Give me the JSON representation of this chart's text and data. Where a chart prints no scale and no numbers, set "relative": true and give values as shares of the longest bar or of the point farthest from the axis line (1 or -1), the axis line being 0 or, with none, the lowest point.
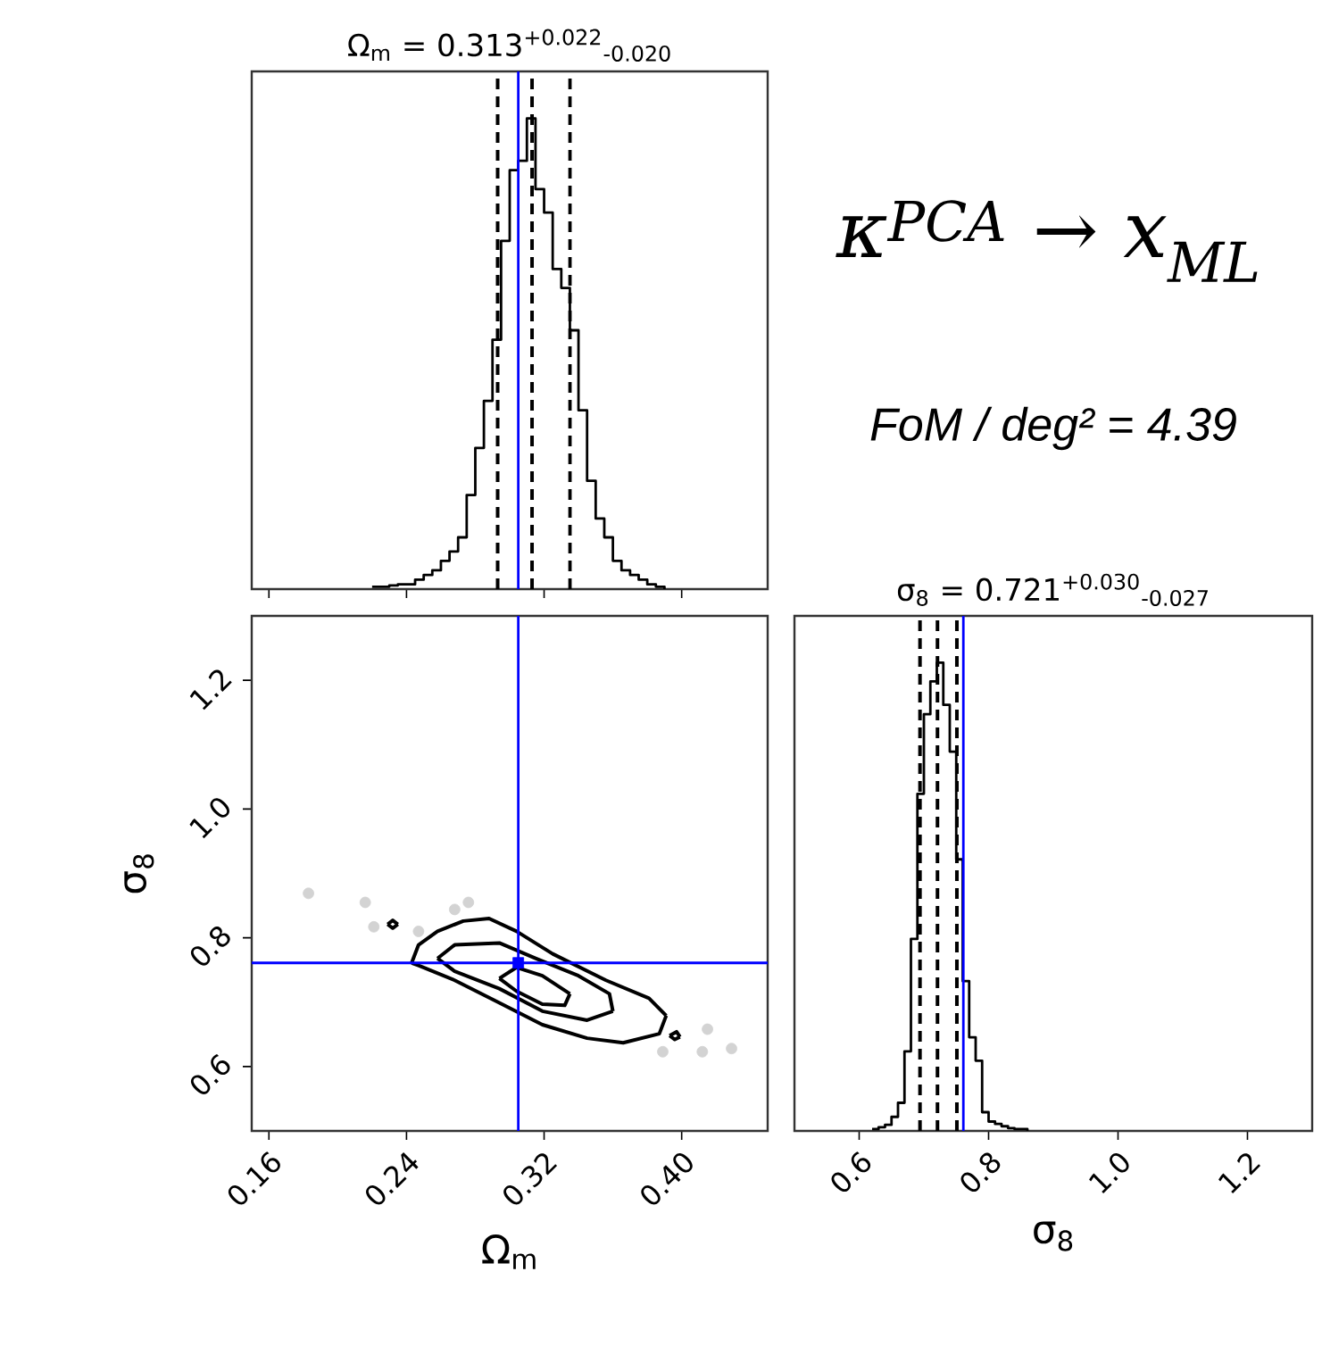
{
  "chart_data": [
    {
      "type": "step",
      "title": "Ω$_{m}$ = 0.313$^{+0.022}$$_{-0.020}$",
      "relative": true,
      "color": "#000000",
      "x": [
        0.22,
        0.225,
        0.23,
        0.235,
        0.24,
        0.245,
        0.25,
        0.255,
        0.26,
        0.265,
        0.27,
        0.275,
        0.28,
        0.285,
        0.29,
        0.295,
        0.3,
        0.305,
        0.31,
        0.315,
        0.32,
        0.325,
        0.33,
        0.335,
        0.34,
        0.345,
        0.35,
        0.355,
        0.36,
        0.365,
        0.37,
        0.375,
        0.38,
        0.385,
        0.39
      ],
      "values": [
        0.005,
        0.005,
        0.008,
        0.01,
        0.01,
        0.02,
        0.03,
        0.04,
        0.06,
        0.08,
        0.11,
        0.2,
        0.3,
        0.4,
        0.53,
        0.74,
        0.89,
        0.91,
        1.0,
        0.85,
        0.8,
        0.68,
        0.64,
        0.55,
        0.38,
        0.23,
        0.15,
        0.11,
        0.06,
        0.04,
        0.03,
        0.02,
        0.01,
        0.005,
        0
      ],
      "xlim": [
        0.15,
        0.45
      ],
      "xticks": [
        0.16,
        0.24,
        0.32,
        0.4
      ],
      "tick_labels": false,
      "ref_lines": [
        {
          "axis": "x",
          "value": 0.293,
          "color": "#000000",
          "line_style": "dashed"
        },
        {
          "axis": "x",
          "value": 0.313,
          "color": "#000000",
          "line_style": "dashed"
        },
        {
          "axis": "x",
          "value": 0.335,
          "color": "#000000",
          "line_style": "dashed"
        },
        {
          "axis": "x",
          "value": 0.305,
          "color": "#0000ff",
          "line_style": "solid"
        }
      ]
    },
    {
      "type": "line",
      "xlabel": "Ω$_{m}$",
      "ylabel": "σ$_{8}$",
      "xlim": [
        0.15,
        0.45
      ],
      "ylim": [
        0.5,
        1.3
      ],
      "xticks": [
        {
          "value": 0.16,
          "label": "0.16"
        },
        {
          "value": 0.24,
          "label": "0.24"
        },
        {
          "value": 0.32,
          "label": "0.32"
        },
        {
          "value": 0.4,
          "label": "0.40"
        }
      ],
      "yticks": [
        {
          "value": 0.6,
          "label": "0.6"
        },
        {
          "value": 0.8,
          "label": "0.8"
        },
        {
          "value": 1.0,
          "label": "1.0"
        },
        {
          "value": 1.2,
          "label": "1.2"
        }
      ],
      "series": [
        {
          "type": "line",
          "color": "#000000",
          "x": [
            0.243,
            0.247,
            0.258,
            0.273,
            0.288,
            0.304,
            0.325,
            0.356,
            0.381,
            0.391
          ],
          "values": [
            0.761,
            0.789,
            0.81,
            0.826,
            0.83,
            0.81,
            0.775,
            0.734,
            0.706,
            0.679
          ]
        },
        {
          "type": "line",
          "color": "#000000",
          "x": [
            0.243,
            0.247,
            0.268,
            0.294,
            0.319,
            0.345,
            0.366,
            0.387,
            0.391
          ],
          "values": [
            0.761,
            0.757,
            0.734,
            0.699,
            0.665,
            0.644,
            0.637,
            0.651,
            0.679
          ]
        },
        {
          "type": "line",
          "color": "#000000",
          "x": [
            0.258,
            0.268,
            0.294,
            0.315,
            0.34,
            0.358,
            0.36
          ],
          "values": [
            0.768,
            0.789,
            0.792,
            0.768,
            0.741,
            0.713,
            0.686
          ]
        },
        {
          "type": "line",
          "color": "#000000",
          "x": [
            0.258,
            0.268,
            0.294,
            0.319,
            0.345,
            0.36
          ],
          "values": [
            0.768,
            0.748,
            0.721,
            0.686,
            0.672,
            0.686
          ]
        },
        {
          "type": "line",
          "color": "#000000",
          "x": [
            0.294,
            0.304,
            0.319,
            0.335
          ],
          "values": [
            0.737,
            0.754,
            0.741,
            0.713
          ]
        },
        {
          "type": "line",
          "color": "#000000",
          "x": [
            0.294,
            0.304,
            0.319,
            0.332,
            0.335
          ],
          "values": [
            0.737,
            0.717,
            0.697,
            0.695,
            0.713
          ]
        },
        {
          "type": "line",
          "color": "#000000",
          "x": [
            0.229,
            0.232,
            0.235
          ],
          "values": [
            0.821,
            0.827,
            0.821
          ]
        },
        {
          "type": "line",
          "color": "#000000",
          "x": [
            0.229,
            0.232,
            0.235
          ],
          "values": [
            0.821,
            0.815,
            0.821
          ]
        },
        {
          "type": "line",
          "color": "#000000",
          "x": [
            0.393,
            0.397,
            0.399
          ],
          "values": [
            0.648,
            0.654,
            0.646
          ]
        },
        {
          "type": "line",
          "color": "#000000",
          "x": [
            0.393,
            0.396,
            0.399
          ],
          "values": [
            0.648,
            0.642,
            0.646
          ]
        },
        {
          "type": "scatter",
          "color": "#d3d3d3",
          "marker": "circle",
          "x": [
            0.183,
            0.216,
            0.221,
            0.276,
            0.268,
            0.247,
            0.415,
            0.429,
            0.389,
            0.412
          ],
          "values": [
            0.869,
            0.855,
            0.817,
            0.855,
            0.844,
            0.81,
            0.658,
            0.628,
            0.623,
            0.623
          ]
        },
        {
          "type": "scatter",
          "color": "#0000ff",
          "marker": "square",
          "x": [
            0.305
          ],
          "values": [
            0.761
          ]
        }
      ],
      "ref_lines": [
        {
          "axis": "x",
          "value": 0.305,
          "color": "#0000ff",
          "line_style": "solid"
        },
        {
          "axis": "y",
          "value": 0.761,
          "color": "#0000ff",
          "line_style": "solid"
        }
      ]
    },
    {
      "type": "step",
      "title": "σ$_{8}$ = 0.721$^{+0.030}$$_{-0.027}$",
      "xlabel": "σ$_{8}$",
      "relative": true,
      "color": "#000000",
      "x": [
        0.62,
        0.63,
        0.64,
        0.65,
        0.66,
        0.67,
        0.68,
        0.69,
        0.7,
        0.71,
        0.72,
        0.73,
        0.74,
        0.75,
        0.76,
        0.77,
        0.78,
        0.79,
        0.8,
        0.81,
        0.82,
        0.83,
        0.84,
        0.85,
        0.86
      ],
      "values": [
        0.004,
        0.008,
        0.013,
        0.03,
        0.06,
        0.17,
        0.41,
        0.72,
        0.89,
        0.96,
        1.0,
        0.91,
        0.81,
        0.58,
        0.32,
        0.2,
        0.15,
        0.04,
        0.02,
        0.015,
        0.01,
        0.006,
        0.004,
        0.004,
        0
      ],
      "xlim": [
        0.5,
        1.3
      ],
      "xticks": [
        {
          "value": 0.6,
          "label": "0.6"
        },
        {
          "value": 0.8,
          "label": "0.8"
        },
        {
          "value": 1.0,
          "label": "1.0"
        },
        {
          "value": 1.2,
          "label": "1.2"
        }
      ],
      "tick_labels": "x",
      "ref_lines": [
        {
          "axis": "x",
          "value": 0.694,
          "color": "#000000",
          "line_style": "dashed"
        },
        {
          "axis": "x",
          "value": 0.721,
          "color": "#000000",
          "line_style": "dashed"
        },
        {
          "axis": "x",
          "value": 0.751,
          "color": "#000000",
          "line_style": "dashed"
        },
        {
          "axis": "x",
          "value": 0.761,
          "color": "#0000ff",
          "line_style": "solid"
        }
      ]
    },
    {
      "type": "other",
      "annotations": [
        "κ$^{PCA}$ → x$_{ML}$",
        "FoM / deg² = 4.39"
      ]
    }
  ]
}
